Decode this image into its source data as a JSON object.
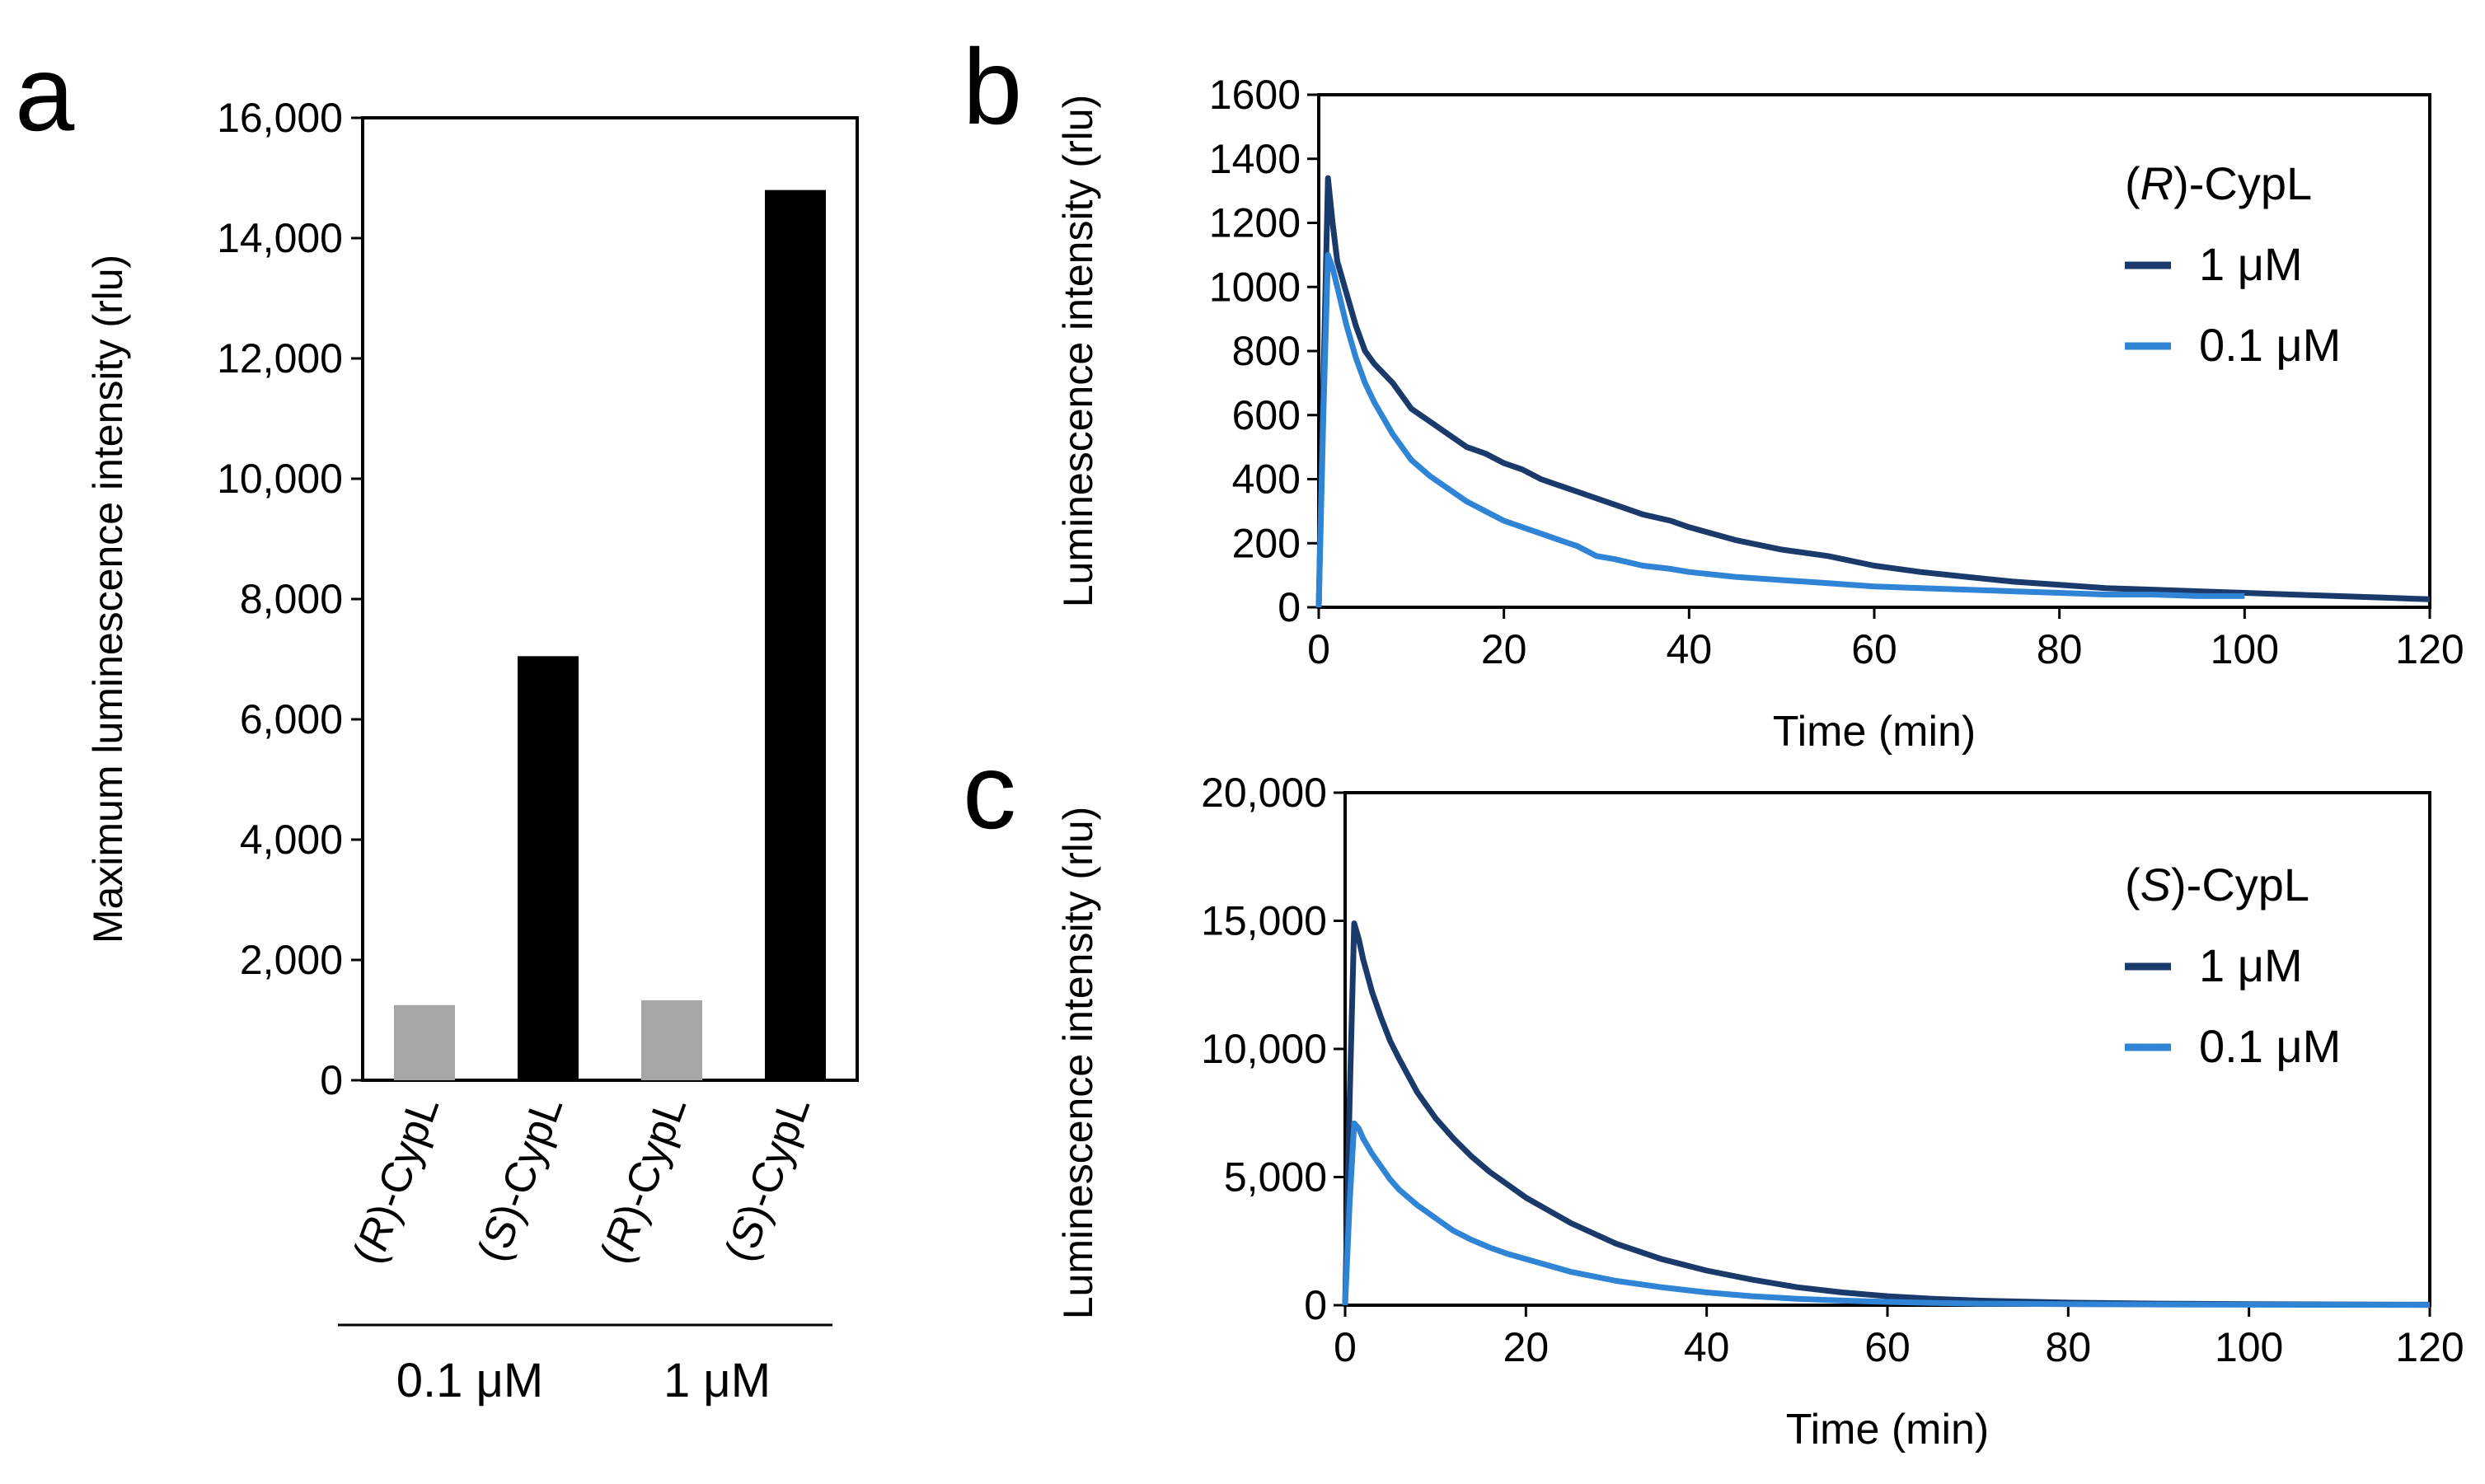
{
  "colors": {
    "grey_bar": "#a6a6a6",
    "black_bar": "#000000",
    "dark_blue": "#1a3a6b",
    "light_blue": "#2f84d6"
  },
  "panels": {
    "a": "a",
    "b": "b",
    "c": "c"
  },
  "chart_data": [
    {
      "panel": "a",
      "type": "bar",
      "ylabel": "Maximum luminescence intensity (rlu)",
      "ylim": [
        0,
        16000
      ],
      "yticks": [
        "0",
        "2,000",
        "4,000",
        "6,000",
        "8,000",
        "10,000",
        "12,000",
        "14,000",
        "16,000"
      ],
      "categories": [
        {
          "prefix": "(",
          "it": "R",
          "suffix": ")-CypL",
          "value": 1250,
          "color": "#a6a6a6"
        },
        {
          "prefix": "(",
          "it": "S",
          "suffix": ")-CypL",
          "value": 7050,
          "color": "#000000"
        },
        {
          "prefix": "(",
          "it": "R",
          "suffix": ")-CypL",
          "value": 1330,
          "color": "#a6a6a6"
        },
        {
          "prefix": "(",
          "it": "S",
          "suffix": ")-CypL",
          "value": 14800,
          "color": "#000000"
        }
      ],
      "groups": [
        "0.1 μM",
        "1 μM"
      ]
    },
    {
      "panel": "b",
      "type": "line",
      "xlabel": "Time (min)",
      "ylabel": "Luminescence intensity (rlu)",
      "xlim": [
        0,
        120
      ],
      "ylim": [
        0,
        1600
      ],
      "xticks": [
        "0",
        "20",
        "40",
        "60",
        "80",
        "100",
        "120"
      ],
      "yticks": [
        "0",
        "200",
        "400",
        "600",
        "800",
        "1000",
        "1200",
        "1400",
        "1600"
      ],
      "legend": {
        "title_prefix": "(",
        "title_it": "R",
        "title_suffix": ")-CypL",
        "position": "top-right"
      },
      "series": [
        {
          "name": "1 μM",
          "color": "#1a3a6b",
          "x": [
            0,
            0.5,
            1,
            1.5,
            2,
            3,
            4,
            5,
            6,
            8,
            10,
            12,
            14,
            16,
            18,
            20,
            22,
            24,
            26,
            28,
            30,
            32,
            35,
            38,
            40,
            45,
            50,
            55,
            60,
            65,
            70,
            75,
            80,
            85,
            90,
            95,
            100,
            105,
            110,
            115,
            120
          ],
          "y": [
            0,
            700,
            1340,
            1200,
            1080,
            980,
            880,
            800,
            760,
            700,
            620,
            580,
            540,
            500,
            480,
            450,
            430,
            400,
            380,
            360,
            340,
            320,
            290,
            270,
            250,
            210,
            180,
            160,
            130,
            110,
            95,
            80,
            70,
            60,
            55,
            50,
            45,
            40,
            35,
            30,
            25
          ]
        },
        {
          "name": "0.1 μM",
          "color": "#2f84d6",
          "x": [
            0,
            0.5,
            1,
            1.5,
            2,
            3,
            4,
            5,
            6,
            8,
            10,
            12,
            14,
            16,
            18,
            20,
            22,
            24,
            26,
            28,
            30,
            32,
            35,
            38,
            40,
            45,
            50,
            55,
            60,
            65,
            70,
            75,
            80,
            85,
            90,
            95,
            100
          ],
          "y": [
            0,
            600,
            1100,
            1060,
            1000,
            880,
            780,
            700,
            640,
            540,
            460,
            410,
            370,
            330,
            300,
            270,
            250,
            230,
            210,
            190,
            160,
            150,
            130,
            120,
            110,
            95,
            85,
            75,
            65,
            60,
            55,
            50,
            45,
            40,
            40,
            35,
            35
          ]
        }
      ]
    },
    {
      "panel": "c",
      "type": "line",
      "xlabel": "Time (min)",
      "ylabel": "Luminescence intensity (rlu)",
      "xlim": [
        0,
        120
      ],
      "ylim": [
        0,
        20000
      ],
      "xticks": [
        "0",
        "20",
        "40",
        "60",
        "80",
        "100",
        "120"
      ],
      "yticks": [
        "0",
        "5,000",
        "10,000",
        "15,000",
        "20,000"
      ],
      "legend": {
        "title_prefix": "(",
        "title_it": "S",
        "title_suffix": ")-CypL",
        "position": "top-right"
      },
      "series": [
        {
          "name": "1 μM",
          "color": "#1a3a6b",
          "x": [
            0,
            0.5,
            1,
            1.5,
            2,
            3,
            4,
            5,
            6,
            8,
            10,
            12,
            14,
            16,
            18,
            20,
            25,
            30,
            35,
            40,
            45,
            50,
            55,
            60,
            65,
            70,
            80,
            90,
            100,
            110,
            120
          ],
          "y": [
            0,
            8000,
            14900,
            14300,
            13500,
            12200,
            11200,
            10300,
            9600,
            8300,
            7300,
            6500,
            5800,
            5200,
            4700,
            4200,
            3200,
            2400,
            1800,
            1350,
            1000,
            700,
            500,
            350,
            250,
            180,
            100,
            60,
            40,
            30,
            20
          ]
        },
        {
          "name": "0.1 μM",
          "color": "#2f84d6",
          "x": [
            0,
            0.5,
            1,
            1.5,
            2,
            3,
            4,
            5,
            6,
            8,
            10,
            12,
            14,
            16,
            18,
            20,
            25,
            30,
            35,
            40,
            45,
            50,
            55,
            60,
            65,
            70,
            80,
            90,
            100,
            110,
            120
          ],
          "y": [
            0,
            4000,
            7100,
            6900,
            6500,
            5900,
            5400,
            4900,
            4500,
            3900,
            3400,
            2900,
            2550,
            2250,
            2000,
            1800,
            1300,
            950,
            700,
            500,
            350,
            250,
            180,
            130,
            90,
            60,
            40,
            30,
            20,
            15,
            10
          ]
        }
      ]
    }
  ]
}
